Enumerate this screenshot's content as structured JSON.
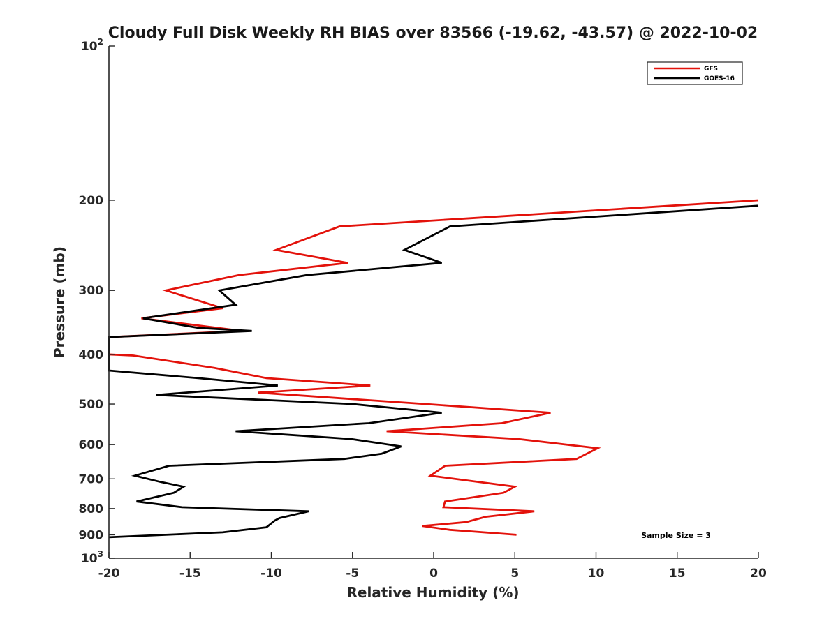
{
  "chart_data": {
    "type": "line",
    "title": "Cloudy Full Disk Weekly RH BIAS over 83566 (-19.62, -43.57) @ 2022-10-02",
    "xlabel": "Relative Humidity (%)",
    "ylabel": "Pressure (mb)",
    "xlim": [
      -20,
      20
    ],
    "ylim": [
      100,
      1000
    ],
    "yscale": "log",
    "yreversed": true,
    "x_ticks": [
      "-20",
      "-15",
      "-10",
      "-5",
      "0",
      "5",
      "10",
      "15",
      "20"
    ],
    "y_ticks": [
      {
        "value": 100,
        "base": "10",
        "exp": "2"
      },
      {
        "value": 200,
        "label": "200"
      },
      {
        "value": 300,
        "label": "300"
      },
      {
        "value": 400,
        "label": "400"
      },
      {
        "value": 500,
        "label": "500"
      },
      {
        "value": 600,
        "label": "600"
      },
      {
        "value": 700,
        "label": "700"
      },
      {
        "value": 800,
        "label": "800"
      },
      {
        "value": 900,
        "label": "900"
      },
      {
        "value": 1000,
        "base": "10",
        "exp": "3"
      }
    ],
    "grid": false,
    "legend_position": "top-right",
    "annotation": "Sample Size = 3",
    "series": [
      {
        "name": "GFS",
        "color": "#e3120b",
        "points": [
          [
            20.0,
            200
          ],
          [
            -5.8,
            225
          ],
          [
            -9.7,
            250
          ],
          [
            -5.3,
            265
          ],
          [
            -12.0,
            280
          ],
          [
            -16.5,
            300
          ],
          [
            -13.0,
            325
          ],
          [
            -18.0,
            340
          ],
          [
            -11.8,
            360
          ],
          [
            -20.0,
            370
          ],
          [
            -20.0,
            400
          ],
          [
            -18.5,
            402
          ],
          [
            -13.5,
            425
          ],
          [
            -10.3,
            445
          ],
          [
            -3.9,
            460
          ],
          [
            -10.8,
            475
          ],
          [
            -0.5,
            500
          ],
          [
            7.2,
            520
          ],
          [
            4.2,
            545
          ],
          [
            -2.9,
            565
          ],
          [
            5.2,
            585
          ],
          [
            10.1,
            610
          ],
          [
            8.8,
            640
          ],
          [
            0.7,
            660
          ],
          [
            -0.2,
            690
          ],
          [
            5.0,
            725
          ],
          [
            4.3,
            745
          ],
          [
            0.7,
            775
          ],
          [
            0.6,
            795
          ],
          [
            6.2,
            810
          ],
          [
            3.2,
            830
          ],
          [
            2.0,
            850
          ],
          [
            -0.7,
            865
          ],
          [
            1.0,
            880
          ],
          [
            5.1,
            900
          ]
        ]
      },
      {
        "name": "GOES-16",
        "color": "#000000",
        "points": [
          [
            20.0,
            205
          ],
          [
            1.0,
            225
          ],
          [
            -1.8,
            250
          ],
          [
            0.5,
            265
          ],
          [
            -7.8,
            280
          ],
          [
            -13.2,
            300
          ],
          [
            -12.2,
            320
          ],
          [
            -17.9,
            340
          ],
          [
            -14.5,
            355
          ],
          [
            -11.2,
            360
          ],
          [
            -20.0,
            370
          ],
          [
            -20.0,
            430
          ],
          [
            -14.5,
            445
          ],
          [
            -9.6,
            460
          ],
          [
            -17.1,
            480
          ],
          [
            -5.0,
            500
          ],
          [
            0.5,
            520
          ],
          [
            -4.0,
            545
          ],
          [
            -12.2,
            565
          ],
          [
            -5.1,
            585
          ],
          [
            -2.0,
            605
          ],
          [
            -3.2,
            625
          ],
          [
            -5.5,
            640
          ],
          [
            -16.3,
            660
          ],
          [
            -18.4,
            690
          ],
          [
            -16.8,
            710
          ],
          [
            -15.4,
            725
          ],
          [
            -16.0,
            745
          ],
          [
            -18.3,
            775
          ],
          [
            -15.5,
            795
          ],
          [
            -7.7,
            810
          ],
          [
            -9.5,
            835
          ],
          [
            -9.8,
            845
          ],
          [
            -10.3,
            870
          ],
          [
            -13.0,
            890
          ],
          [
            -20.0,
            910
          ]
        ]
      }
    ]
  }
}
